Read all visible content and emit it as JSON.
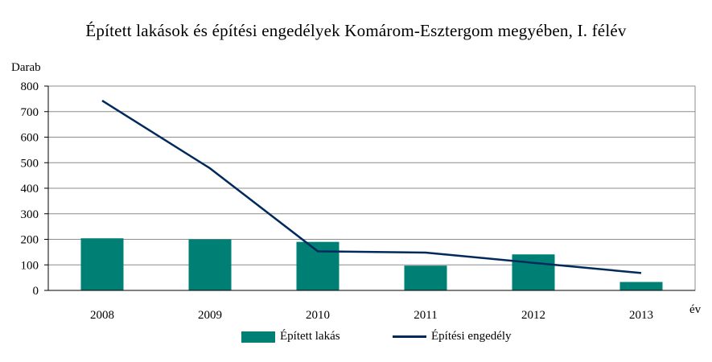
{
  "chart_data": {
    "type": "bar",
    "title": "Épített lakások és építési engedélyek Komárom-Esztergom megyében, I. félév",
    "ylabel": "Darab",
    "xlabel": "év",
    "ylim": [
      0,
      800
    ],
    "yticks": [
      "0",
      "100",
      "200",
      "300",
      "400",
      "500",
      "600",
      "700",
      "800"
    ],
    "categories": [
      "2008",
      "2009",
      "2010",
      "2011",
      "2012",
      "2013"
    ],
    "grid": true,
    "legend_position": "bottom",
    "series": [
      {
        "name": "Épített lakás",
        "type": "bar",
        "color": "#008075",
        "values": [
          204,
          200,
          190,
          97,
          141,
          33
        ]
      },
      {
        "name": "Építési engedély",
        "type": "line",
        "color": "#002a5c",
        "values": [
          743,
          478,
          153,
          148,
          108,
          68
        ]
      }
    ]
  }
}
